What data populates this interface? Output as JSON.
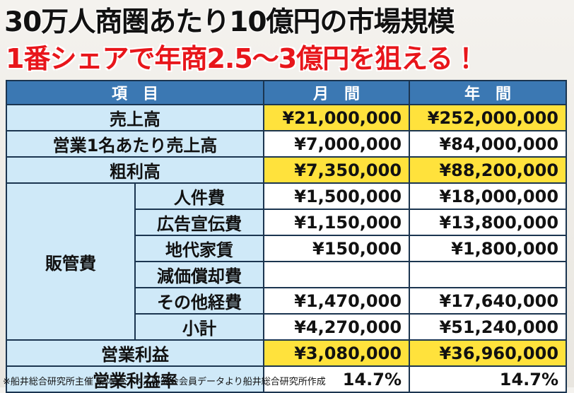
{
  "header": {
    "title": "30万人商圏あたり10億円の市場規模",
    "subtitle": "1番シェアで年商2.5〜3億円を狙える！"
  },
  "table": {
    "columns": [
      "項　目",
      "月　間",
      "年　間"
    ],
    "rows": [
      {
        "label": "売上高",
        "monthly": "¥21,000,000",
        "annual": "¥252,000,000",
        "highlight": true
      },
      {
        "label": "営業1名あたり売上高",
        "monthly": "¥7,000,000",
        "annual": "¥84,000,000",
        "highlight": false
      },
      {
        "label": "粗利高",
        "monthly": "¥7,350,000",
        "annual": "¥88,200,000",
        "highlight": true
      },
      {
        "label": "販管費",
        "items": [
          {
            "label": "人件費",
            "monthly": "¥1,500,000",
            "annual": "¥18,000,000"
          },
          {
            "label": "広告宣伝費",
            "monthly": "¥1,150,000",
            "annual": "¥13,800,000"
          },
          {
            "label": "地代家賃",
            "monthly": "¥150,000",
            "annual": "¥1,800,000"
          },
          {
            "label": "減価償却費"
          },
          {
            "label": "その他経費",
            "monthly": "¥1,470,000",
            "annual": "¥17,640,000"
          },
          {
            "label": "小計",
            "monthly": "¥4,270,000",
            "annual": "¥51,240,000"
          }
        ]
      },
      {
        "label": "営業利益",
        "monthly": "¥3,080,000",
        "annual": "¥36,960,000",
        "highlight": true
      },
      {
        "label": "営業利益率",
        "monthly": "14.7%",
        "annual": "14.7%",
        "highlight": false
      }
    ]
  },
  "footnote": "※船井総合研究所主催 解体ビジネス研究会会員データより船井総合研究所作成"
}
